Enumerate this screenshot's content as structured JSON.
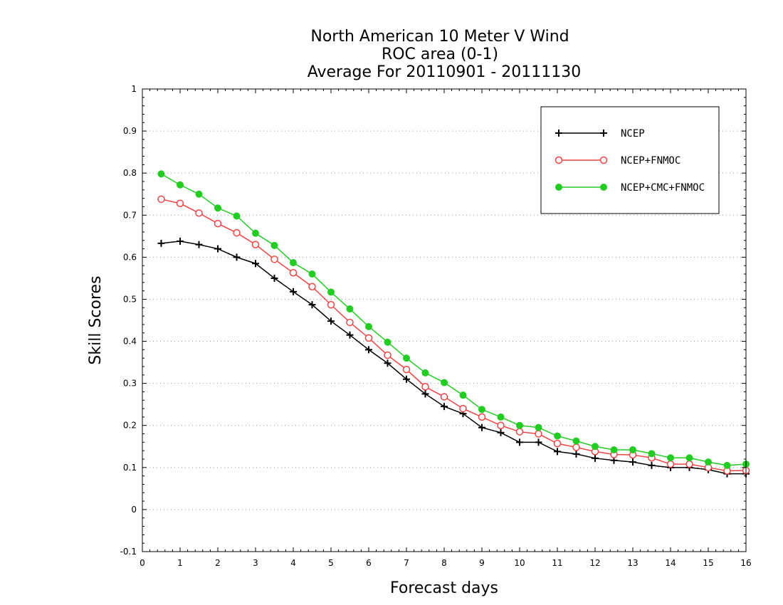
{
  "chart_data": {
    "type": "line",
    "title": [
      "North American 10 Meter V Wind",
      "ROC area (0-1)",
      "Average For 20110901 - 20111130"
    ],
    "xlabel": "Forecast days",
    "ylabel": "Skill Scores",
    "xlim": [
      0,
      16
    ],
    "ylim": [
      -0.1,
      1
    ],
    "xticks": [
      0,
      1,
      2,
      3,
      4,
      5,
      6,
      7,
      8,
      9,
      10,
      11,
      12,
      13,
      14,
      15,
      16
    ],
    "yticks": [
      -0.1,
      0,
      0.1,
      0.2,
      0.3,
      0.4,
      0.5,
      0.6,
      0.7,
      0.8,
      0.9,
      1
    ],
    "ytick_labels": [
      "-0.1",
      "0",
      "0.1",
      "0.2",
      "0.3",
      "0.4",
      "0.5",
      "0.6",
      "0.7",
      "0.8",
      "0.9",
      "1"
    ],
    "grid": true,
    "legend": "top-right",
    "x": [
      0.5,
      1,
      1.5,
      2,
      2.5,
      3,
      3.5,
      4,
      4.5,
      5,
      5.5,
      6,
      6.5,
      7,
      7.5,
      8,
      8.5,
      9,
      9.5,
      10,
      10.5,
      11,
      11.5,
      12,
      12.5,
      13,
      13.5,
      14,
      14.5,
      15,
      15.5,
      16
    ],
    "series": [
      {
        "name": "NCEP",
        "color": "#000000",
        "marker": "plus",
        "values": [
          0.633,
          0.638,
          0.63,
          0.62,
          0.6,
          0.585,
          0.55,
          0.518,
          0.487,
          0.448,
          0.415,
          0.38,
          0.348,
          0.31,
          0.275,
          0.245,
          0.228,
          0.195,
          0.183,
          0.16,
          0.16,
          0.138,
          0.132,
          0.122,
          0.117,
          0.113,
          0.105,
          0.1,
          0.1,
          0.095,
          0.085,
          0.085
        ]
      },
      {
        "name": "NCEP+FNMOC",
        "color": "#ee4444",
        "marker": "open-circle",
        "values": [
          0.738,
          0.728,
          0.705,
          0.68,
          0.658,
          0.63,
          0.595,
          0.563,
          0.53,
          0.487,
          0.445,
          0.408,
          0.367,
          0.333,
          0.292,
          0.268,
          0.24,
          0.22,
          0.2,
          0.185,
          0.18,
          0.157,
          0.148,
          0.138,
          0.131,
          0.13,
          0.123,
          0.108,
          0.108,
          0.1,
          0.092,
          0.093
        ]
      },
      {
        "name": "NCEP+CMC+FNMOC",
        "color": "#22cc22",
        "marker": "filled-circle",
        "values": [
          0.798,
          0.772,
          0.75,
          0.717,
          0.698,
          0.657,
          0.628,
          0.587,
          0.56,
          0.517,
          0.477,
          0.435,
          0.398,
          0.36,
          0.325,
          0.302,
          0.272,
          0.238,
          0.22,
          0.2,
          0.195,
          0.175,
          0.163,
          0.15,
          0.142,
          0.142,
          0.133,
          0.123,
          0.123,
          0.113,
          0.105,
          0.108
        ]
      }
    ]
  }
}
